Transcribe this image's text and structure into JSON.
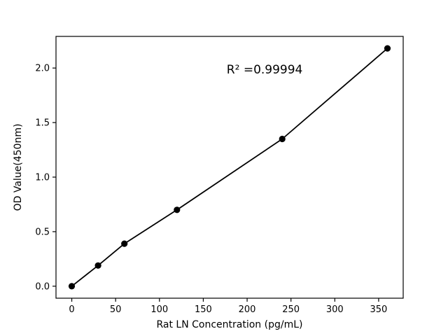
{
  "chart_data": {
    "type": "scatter",
    "title": "",
    "xlabel": "Rat LN Concentration (pg/mL)",
    "ylabel": "OD Value(450nm)",
    "x": [
      0,
      30,
      60,
      120,
      240,
      360
    ],
    "y": [
      0.0,
      0.19,
      0.39,
      0.7,
      1.35,
      2.18
    ],
    "fit_line": true,
    "annotation": {
      "text": "R² =0.99994",
      "x": 220,
      "y": 1.95
    },
    "xlim": [
      -18,
      378
    ],
    "ylim": [
      -0.11,
      2.29
    ],
    "xticks": {
      "values": [
        0,
        50,
        100,
        150,
        200,
        250,
        300,
        350
      ],
      "labels": [
        "0",
        "50",
        "100",
        "150",
        "200",
        "250",
        "300",
        "350"
      ]
    },
    "yticks": {
      "values": [
        0,
        0.5,
        1.0,
        1.5,
        2.0
      ],
      "labels": [
        "0.0",
        "0.5",
        "1.0",
        "1.5",
        "2.0"
      ]
    },
    "grid": false,
    "legend": "none",
    "marker_color": "#000000",
    "line_color": "#000000",
    "axis_color": "#000000",
    "background": "#ffffff"
  }
}
